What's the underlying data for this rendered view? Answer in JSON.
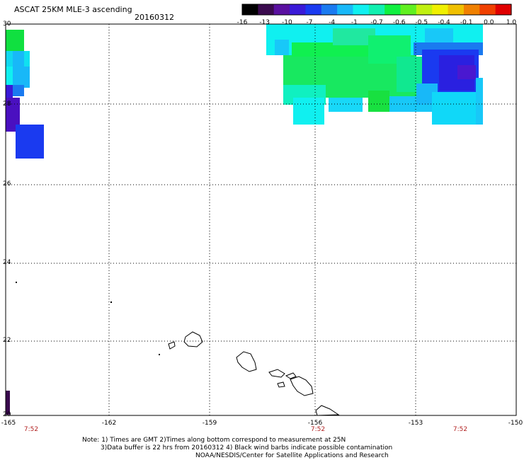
{
  "header": {
    "title": "ASCAT 25KM MLE-3 ascending",
    "date": "20160312"
  },
  "colorbar": {
    "tick_labels": [
      "-16",
      "-13",
      "-10",
      "-7",
      "-4",
      "-1",
      "-0.7",
      "-0.6",
      "-0.5",
      "-0.4",
      "-0.1",
      "0.0",
      "1.0"
    ],
    "colors": [
      "#000000",
      "#3a0a4e",
      "#5a10a0",
      "#3a1ad8",
      "#1a3af0",
      "#1a7af0",
      "#18b8f8",
      "#10f0f0",
      "#10f0b0",
      "#10f040",
      "#60f020",
      "#c0f010",
      "#f0f000",
      "#f0c000",
      "#f08000",
      "#f04000",
      "#e00000"
    ]
  },
  "axes": {
    "lat_labels": [
      "30",
      "28",
      "26",
      "24",
      "22",
      "20"
    ],
    "lon_labels": [
      "-165",
      "-162",
      "-159",
      "-156",
      "-153",
      "-150"
    ],
    "time_labels": [
      "7:52",
      "7:52",
      "7:52"
    ]
  },
  "notes": {
    "line1": "Note: 1) Times are GMT 2)Times along bottom correspond to measurement at 25N",
    "line2": "3)Data buffer is 22 hrs from 20160312 4) Black wind barbs indicate possible contamination",
    "line3": "NOAA/NESDIS/Center for Satellite Applications and Research"
  }
}
